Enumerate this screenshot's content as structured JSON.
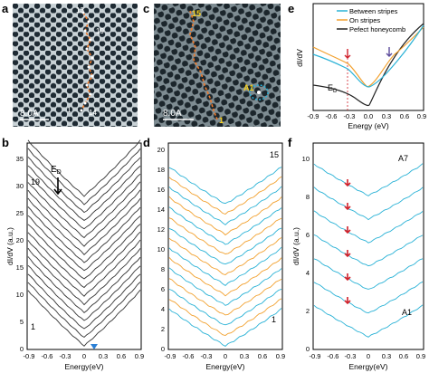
{
  "panels": {
    "a": {
      "letter": "a",
      "scale_label": "8.0A",
      "point_labels": [
        "13",
        "19",
        "1",
        "14"
      ]
    },
    "c": {
      "letter": "c",
      "scale_label": "8.0A",
      "point_labels": [
        "15",
        "1",
        "A1"
      ]
    },
    "b": {
      "letter": "b",
      "ylabel": "dI/dV (a.u.)",
      "xlabel": "Energy(eV)",
      "yticks": [
        "0",
        "5",
        "10",
        "15",
        "20",
        "25",
        "30",
        "35"
      ],
      "xticks": [
        "-0.9",
        "-0.6",
        "-0.3",
        "0",
        "0.3",
        "0.6",
        "0.9"
      ],
      "curve_top_label": "19",
      "curve_bottom_label": "1",
      "ed_label": "E",
      "ed_sub": "D"
    },
    "d": {
      "letter": "d",
      "yticks": [
        "0",
        "2",
        "4",
        "6",
        "8",
        "10",
        "12",
        "14",
        "16",
        "18",
        "20"
      ],
      "xticks": [
        "-0.9",
        "-0.6",
        "-0.3",
        "0",
        "0.3",
        "0.6",
        "0.9"
      ],
      "xlabel": "Energy(eV)",
      "curve_top_label": "15",
      "curve_bottom_label": "1"
    },
    "e": {
      "letter": "e",
      "ylabel": "dI/dV",
      "xlabel": "Energy (eV)",
      "xticks": [
        "-0.9",
        "-0.6",
        "-0.3",
        "0.0",
        "0.3",
        "0.6",
        "0.9"
      ],
      "legend": [
        {
          "label": "Between stripes",
          "color": "#2ab2d6"
        },
        {
          "label": "On stripes",
          "color": "#f2a12f"
        },
        {
          "label": "Pefect honeycomb",
          "color": "#000000"
        }
      ],
      "ed_label": "E",
      "ed_sub": "D"
    },
    "f": {
      "letter": "f",
      "ylabel": "dI/dV (a.u.)",
      "xlabel": "Energy(eV)",
      "yticks": [
        "0",
        "2",
        "4",
        "6",
        "8",
        "10"
      ],
      "xticks": [
        "-0.9",
        "-0.6",
        "-0.3",
        "0",
        "0.3",
        "0.6",
        "0.9"
      ],
      "curve_top_label": "A7",
      "curve_bottom_label": "A1"
    }
  },
  "colors": {
    "cyan": "#2ab2d6",
    "orange": "#f2a12f",
    "black": "#222222",
    "red": "#d0202a",
    "purple": "#5b4a9a"
  }
}
